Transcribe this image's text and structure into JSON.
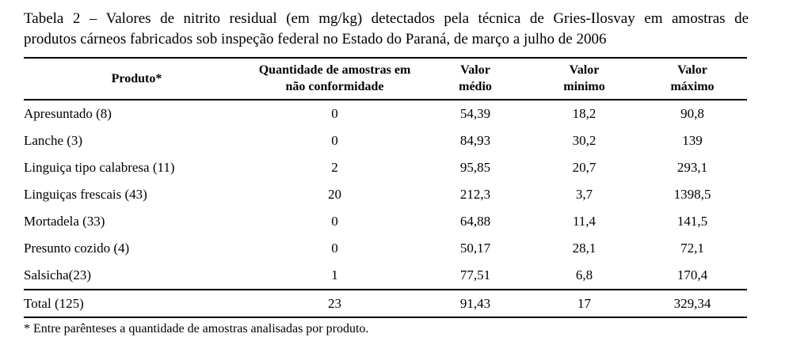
{
  "page": {
    "background": "#ffffff",
    "text_color": "#000000"
  },
  "title": {
    "line1": "Tabela 2 – Valores de nitrito residual (em mg/kg) detectados pela técnica de Gries-Ilosvay em amostras de",
    "line2": "produtos cárneos fabricados sob inspeção federal no Estado do Paraná, de março a julho de 2006"
  },
  "table": {
    "headers": [
      {
        "lines": [
          "Produto*"
        ]
      },
      {
        "lines": [
          "Quantidade de amostras em",
          "não conformidade"
        ]
      },
      {
        "lines": [
          "Valor",
          "médio"
        ]
      },
      {
        "lines": [
          "Valor",
          "minimo"
        ]
      },
      {
        "lines": [
          "Valor",
          "máximo"
        ]
      }
    ],
    "rows": [
      {
        "product": "Apresuntado (8)",
        "nonconforming": "0",
        "mean": "54,39",
        "min": "18,2",
        "max": "90,8"
      },
      {
        "product": "Lanche (3)",
        "nonconforming": "0",
        "mean": "84,93",
        "min": "30,2",
        "max": "139"
      },
      {
        "product": "Linguiça tipo calabresa (11)",
        "nonconforming": "2",
        "mean": "95,85",
        "min": "20,7",
        "max": "293,1"
      },
      {
        "product": "Linguiças frescais (43)",
        "nonconforming": "20",
        "mean": "212,3",
        "min": "3,7",
        "max": "1398,5"
      },
      {
        "product": "Mortadela (33)",
        "nonconforming": "0",
        "mean": "64,88",
        "min": "11,4",
        "max": "141,5"
      },
      {
        "product": "Presunto cozido (4)",
        "nonconforming": "0",
        "mean": "50,17",
        "min": "28,1",
        "max": "72,1"
      },
      {
        "product": "Salsicha(23)",
        "nonconforming": "1",
        "mean": "77,51",
        "min": "6,8",
        "max": "170,4"
      }
    ],
    "total_row": {
      "product": "Total (125)",
      "nonconforming": "23",
      "mean": "91,43",
      "min": "17",
      "max": "329,34"
    }
  },
  "footnote": "* Entre parênteses a quantidade de amostras analisadas por produto."
}
